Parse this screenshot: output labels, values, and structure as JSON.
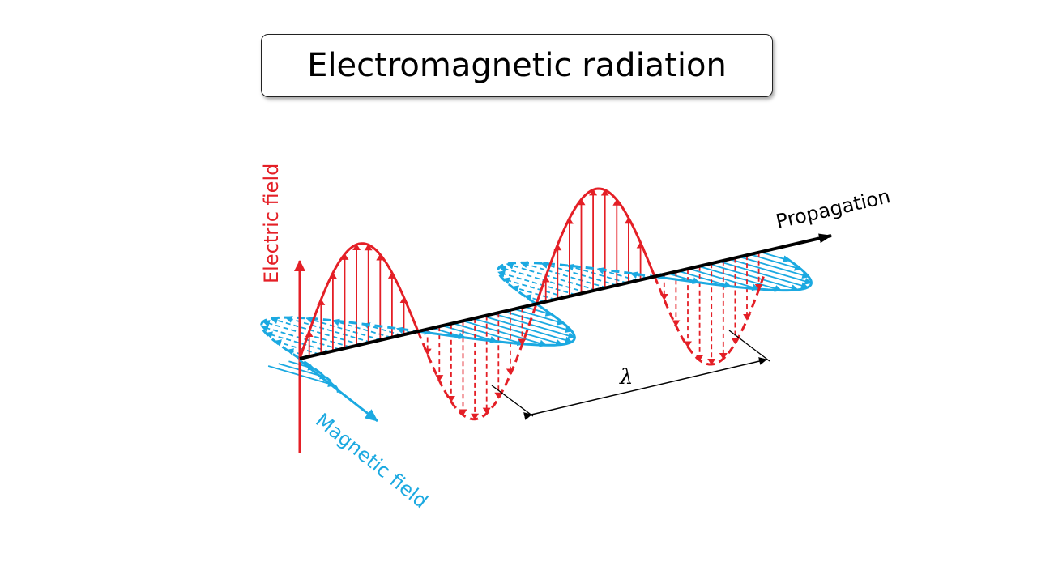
{
  "title": "Electromagnetic radiation",
  "diagram": {
    "electric_label": "Electric field",
    "magnetic_label": "Magnetic field",
    "propagation_label": "Propagation",
    "wavelength_label": "λ"
  },
  "colors": {
    "electric": "#e41f26",
    "magnetic": "#1ba9e1",
    "axis": "#000000",
    "dimension": "#000000"
  }
}
